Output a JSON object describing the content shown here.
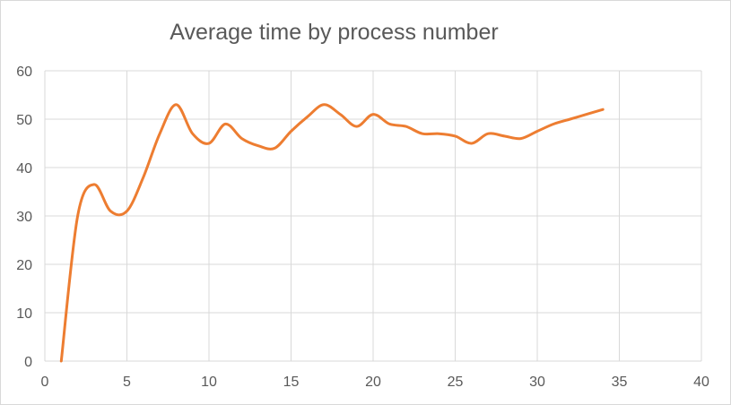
{
  "chart_data": {
    "type": "line",
    "title": "Average time by process number",
    "xlabel": "",
    "ylabel": "",
    "xlim": [
      0,
      40
    ],
    "ylim": [
      0,
      60
    ],
    "x_ticks": [
      0,
      5,
      10,
      15,
      20,
      25,
      30,
      35,
      40
    ],
    "y_ticks": [
      0,
      10,
      20,
      30,
      40,
      50,
      60
    ],
    "grid": true,
    "smooth": true,
    "series": [
      {
        "color": "#ed7d31",
        "x": [
          1,
          2,
          3,
          4,
          5,
          6,
          7,
          8,
          9,
          10,
          11,
          12,
          13,
          14,
          15,
          16,
          17,
          18,
          19,
          20,
          21,
          22,
          23,
          24,
          25,
          26,
          27,
          28,
          29,
          30,
          31,
          32,
          33,
          34
        ],
        "y": [
          0,
          30,
          36.5,
          31,
          31,
          38,
          47,
          53,
          47,
          45,
          49,
          46,
          44.5,
          44,
          47.5,
          50.5,
          53,
          51,
          48.5,
          51,
          49,
          48.5,
          47,
          47,
          46.5,
          45,
          47,
          46.5,
          46,
          47.5,
          49,
          50,
          51,
          52
        ]
      }
    ]
  }
}
